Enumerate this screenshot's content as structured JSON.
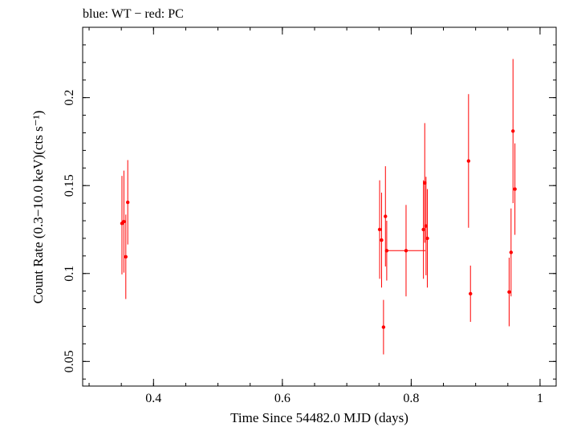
{
  "chart_data": {
    "type": "scatter",
    "title": "blue: WT − red: PC",
    "xlabel": "Time Since 54482.0 MJD (days)",
    "ylabel": "Count Rate (0.3−10.0 keV)(cts s⁻¹)",
    "xlim": [
      0.29,
      1.025
    ],
    "ylim": [
      0.036,
      0.24
    ],
    "x_ticks": [
      0.4,
      0.6,
      0.8,
      1
    ],
    "x_tick_labels": [
      "0.4",
      "0.6",
      "0.8",
      "1"
    ],
    "y_ticks": [
      0.05,
      0.1,
      0.15,
      0.2
    ],
    "y_tick_labels": [
      "0.05",
      "0.1",
      "0.15",
      "0.2"
    ],
    "grid": false,
    "series": [
      {
        "color": "#ff0000",
        "points": [
          {
            "x": 0.351,
            "y": 0.1285,
            "yerr_lo": 0.029,
            "yerr_hi": 0.027,
            "xerr": 0.001
          },
          {
            "x": 0.354,
            "y": 0.1295,
            "yerr_lo": 0.029,
            "yerr_hi": 0.029,
            "xerr": 0.001
          },
          {
            "x": 0.357,
            "y": 0.1095,
            "yerr_lo": 0.024,
            "yerr_hi": 0.024,
            "xerr": 0.001
          },
          {
            "x": 0.36,
            "y": 0.1405,
            "yerr_lo": 0.024,
            "yerr_hi": 0.024,
            "xerr": 0.001
          },
          {
            "x": 0.751,
            "y": 0.125,
            "yerr_lo": 0.028,
            "yerr_hi": 0.028,
            "xerr": 0.001
          },
          {
            "x": 0.754,
            "y": 0.119,
            "yerr_lo": 0.027,
            "yerr_hi": 0.027,
            "xerr": 0.001
          },
          {
            "x": 0.757,
            "y": 0.0695,
            "yerr_lo": 0.0155,
            "yerr_hi": 0.0155,
            "xerr": 0.001
          },
          {
            "x": 0.76,
            "y": 0.1325,
            "yerr_lo": 0.0285,
            "yerr_hi": 0.0285,
            "xerr": 0.001
          },
          {
            "x": 0.762,
            "y": 0.113,
            "yerr_lo": 0.017,
            "yerr_hi": 0.017,
            "xerr": 0.001
          },
          {
            "x": 0.792,
            "y": 0.113,
            "yerr_lo": 0.026,
            "yerr_hi": 0.026,
            "xerr": 0.03
          },
          {
            "x": 0.819,
            "y": 0.125,
            "yerr_lo": 0.028,
            "yerr_hi": 0.028,
            "xerr": 0.001
          },
          {
            "x": 0.821,
            "y": 0.1515,
            "yerr_lo": 0.034,
            "yerr_hi": 0.034,
            "xerr": 0.001
          },
          {
            "x": 0.823,
            "y": 0.127,
            "yerr_lo": 0.028,
            "yerr_hi": 0.028,
            "xerr": 0.001
          },
          {
            "x": 0.825,
            "y": 0.12,
            "yerr_lo": 0.028,
            "yerr_hi": 0.028,
            "xerr": 0.001
          },
          {
            "x": 0.889,
            "y": 0.164,
            "yerr_lo": 0.038,
            "yerr_hi": 0.038,
            "xerr": 0.001
          },
          {
            "x": 0.892,
            "y": 0.0885,
            "yerr_lo": 0.016,
            "yerr_hi": 0.016,
            "xerr": 0.001
          },
          {
            "x": 0.952,
            "y": 0.0895,
            "yerr_lo": 0.0195,
            "yerr_hi": 0.0195,
            "xerr": 0.001
          },
          {
            "x": 0.955,
            "y": 0.112,
            "yerr_lo": 0.025,
            "yerr_hi": 0.025,
            "xerr": 0.001
          },
          {
            "x": 0.958,
            "y": 0.181,
            "yerr_lo": 0.041,
            "yerr_hi": 0.041,
            "xerr": 0.001
          },
          {
            "x": 0.961,
            "y": 0.148,
            "yerr_lo": 0.026,
            "yerr_hi": 0.026,
            "xerr": 0.001
          }
        ]
      }
    ]
  }
}
